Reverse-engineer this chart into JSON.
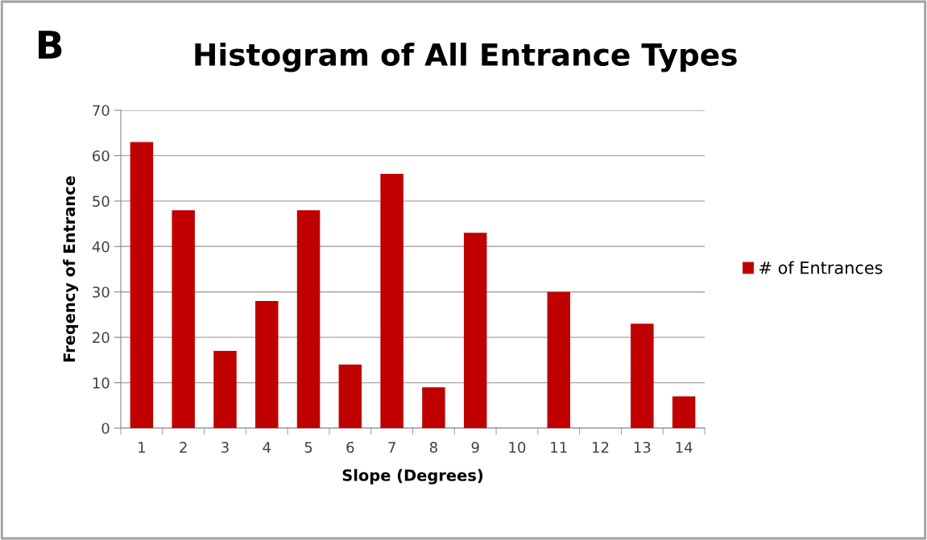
{
  "chart_data": {
    "type": "bar",
    "title": "Histogram of All Entrance Types",
    "xlabel": "Slope (Degrees)",
    "ylabel": "Freqency of Entrance",
    "categories": [
      "1",
      "2",
      "3",
      "4",
      "5",
      "6",
      "7",
      "8",
      "9",
      "10",
      "11",
      "12",
      "13",
      "14"
    ],
    "series": [
      {
        "name": "# of Entrances",
        "color": "#c00000",
        "values": [
          63,
          48,
          17,
          28,
          48,
          14,
          56,
          9,
          43,
          0,
          30,
          0,
          23,
          7
        ]
      }
    ],
    "ylim": [
      0,
      70
    ],
    "yticks": [
      0,
      10,
      20,
      30,
      40,
      50,
      60,
      70
    ],
    "grid": "y",
    "legend": "right",
    "annotations": [
      "B"
    ]
  }
}
